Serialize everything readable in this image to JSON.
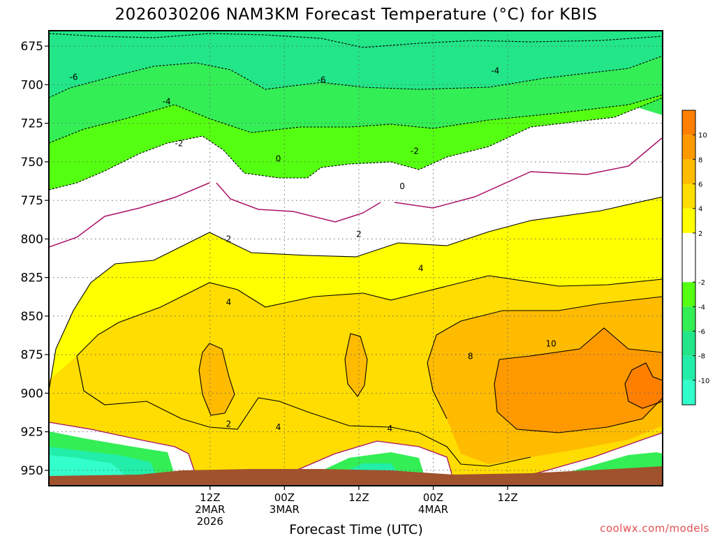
{
  "chart_data": {
    "type": "heatmap",
    "title": "2026030206 NAM3KM Forecast Temperature (°C) for KBIS",
    "xlabel": "Forecast Time (UTC)",
    "ylabel": "",
    "y_axis": {
      "unit": "hPa",
      "reversed": true,
      "range": [
        960,
        665
      ],
      "ticks": [
        "675",
        "700",
        "725",
        "750",
        "775",
        "800",
        "825",
        "850",
        "875",
        "900",
        "925",
        "950"
      ]
    },
    "x_axis": {
      "range_hours": [
        -14,
        85
      ],
      "ticks": [
        {
          "hour": 12,
          "lines": [
            "12Z",
            "2MAR",
            "2026"
          ]
        },
        {
          "hour": 24,
          "lines": [
            "00Z",
            "3MAR"
          ]
        },
        {
          "hour": 36,
          "lines": [
            "12Z"
          ]
        },
        {
          "hour": 48,
          "lines": [
            "00Z",
            "4MAR"
          ]
        },
        {
          "hour": 60,
          "lines": [
            "12Z"
          ]
        }
      ]
    },
    "grid": true,
    "colorbar": {
      "placement": "right",
      "labels": [
        "10",
        "8",
        "6",
        "4",
        "2",
        "-2",
        "-4",
        "-6",
        "-8",
        "-10"
      ],
      "bands": [
        {
          "lo": -12,
          "hi": -10,
          "color": "#33ffcc"
        },
        {
          "lo": -10,
          "hi": -8,
          "color": "#22eeaa"
        },
        {
          "lo": -8,
          "hi": -6,
          "color": "#22e688"
        },
        {
          "lo": -6,
          "hi": -4,
          "color": "#33ee55"
        },
        {
          "lo": -4,
          "hi": -2,
          "color": "#55ff11"
        },
        {
          "lo": -2,
          "hi": 2,
          "color": "#ffffff"
        },
        {
          "lo": 2,
          "hi": 4,
          "color": "#ffff00"
        },
        {
          "lo": 4,
          "hi": 6,
          "color": "#ffdd00"
        },
        {
          "lo": 6,
          "hi": 8,
          "color": "#ffbb00"
        },
        {
          "lo": 8,
          "hi": 10,
          "color": "#ff9900"
        },
        {
          "lo": 10,
          "hi": 12,
          "color": "#ff8000"
        }
      ]
    },
    "contour_labels": [
      {
        "text": "-6",
        "hour": -10,
        "p": 695
      },
      {
        "text": "-6",
        "hour": 30,
        "p": 697
      },
      {
        "text": "-4",
        "hour": 5,
        "p": 711
      },
      {
        "text": "-4",
        "hour": 58,
        "p": 691
      },
      {
        "text": "-2",
        "hour": 7,
        "p": 738
      },
      {
        "text": "-2",
        "hour": 45,
        "p": 743
      },
      {
        "text": "0",
        "hour": 23,
        "p": 748
      },
      {
        "text": "0",
        "hour": 43,
        "p": 766
      },
      {
        "text": "2",
        "hour": 15,
        "p": 800
      },
      {
        "text": "2",
        "hour": 36,
        "p": 797
      },
      {
        "text": "2",
        "hour": 15,
        "p": 920
      },
      {
        "text": "4",
        "hour": 15,
        "p": 841
      },
      {
        "text": "4",
        "hour": 46,
        "p": 819
      },
      {
        "text": "4",
        "hour": 23,
        "p": 922
      },
      {
        "text": "4",
        "hour": 41,
        "p": 923
      },
      {
        "text": "8",
        "hour": 54,
        "p": 876
      },
      {
        "text": "10",
        "hour": 67,
        "p": 868
      }
    ],
    "ground_color": "#a0522d",
    "credit": "coolwx.com/models"
  }
}
